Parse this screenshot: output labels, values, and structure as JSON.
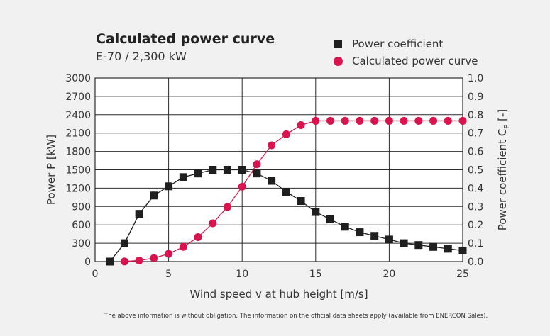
{
  "title": "Calculated power curve",
  "subtitle": "E-70 / 2,300 kW",
  "legend": {
    "power_coefficient": "Power coefficient",
    "power_curve": "Calculated power curve"
  },
  "footnote": "The above information is without obligation. The information on the official data sheets apply (available from ENERCON Sales).",
  "colors": {
    "power_coefficient": "#1f1f1f",
    "power_curve": "#d8134d",
    "grid": "#2b2b2b"
  },
  "chart_data": {
    "type": "line",
    "title": "Calculated power curve",
    "subtitle": "E-70 / 2,300 kW",
    "xlabel": "Wind speed v at hub height [m/s]",
    "ylabel": "Power P [kW]",
    "ylabel_right": "Power coefficient C",
    "ylabel_right_sub": "P",
    "ylabel_right_unit": "[-]",
    "xlim": [
      0,
      25
    ],
    "ylim": [
      0,
      3000
    ],
    "ylim_right": [
      0,
      1.0
    ],
    "x_ticks": [
      "0",
      "5",
      "10",
      "15",
      "20",
      "25"
    ],
    "y_ticks": [
      "0",
      "300",
      "600",
      "900",
      "1200",
      "1500",
      "1800",
      "2100",
      "2400",
      "2700",
      "3000"
    ],
    "y_ticks_right": [
      "0.0",
      "0.1",
      "0.2",
      "0.3",
      "0.4",
      "0.5",
      "0.6",
      "0.7",
      "0.8",
      "0.9",
      "1.0"
    ],
    "grid": true,
    "legend_position": "top-right",
    "series": [
      {
        "name": "Power coefficient",
        "axis": "right",
        "marker": "square",
        "x": [
          1,
          2,
          3,
          4,
          5,
          6,
          7,
          8,
          9,
          10,
          11,
          12,
          13,
          14,
          15,
          16,
          17,
          18,
          19,
          20,
          21,
          22,
          23,
          24,
          25
        ],
        "values": [
          0.0,
          0.1,
          0.26,
          0.36,
          0.41,
          0.46,
          0.48,
          0.5,
          0.5,
          0.5,
          0.48,
          0.44,
          0.38,
          0.33,
          0.27,
          0.23,
          0.19,
          0.16,
          0.14,
          0.12,
          0.1,
          0.09,
          0.08,
          0.07,
          0.06
        ]
      },
      {
        "name": "Calculated power curve",
        "axis": "left",
        "marker": "circle",
        "x": [
          2,
          3,
          4,
          5,
          6,
          7,
          8,
          9,
          10,
          11,
          12,
          13,
          14,
          15,
          16,
          17,
          18,
          19,
          20,
          21,
          22,
          23,
          24,
          25
        ],
        "values": [
          2,
          18,
          56,
          127,
          240,
          400,
          626,
          892,
          1223,
          1590,
          1900,
          2080,
          2230,
          2300,
          2300,
          2300,
          2300,
          2300,
          2300,
          2300,
          2300,
          2300,
          2300,
          2300
        ]
      }
    ]
  }
}
